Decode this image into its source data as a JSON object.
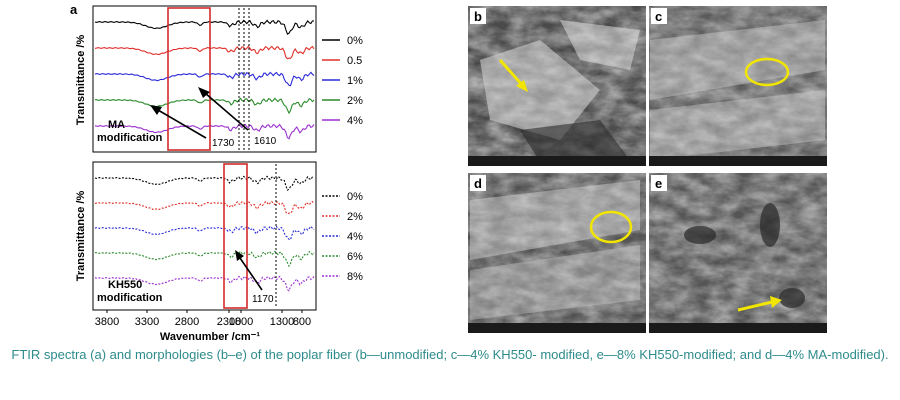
{
  "panel_a_label": "a",
  "x_axis": {
    "label": "Wavenumber /cm⁻¹",
    "ticks": [
      "3800",
      "3300",
      "2800",
      "2300",
      "1800",
      "1300",
      "800"
    ]
  },
  "top_plot": {
    "ylabel": "Transmittance /%",
    "modification": [
      "MA",
      "modification"
    ],
    "annotations": [
      "1730",
      "1610"
    ],
    "legend": [
      {
        "label": "0%",
        "color": "#000000"
      },
      {
        "label": "0.5",
        "color": "#e0302a"
      },
      {
        "label": "1%",
        "color": "#2a2ad8"
      },
      {
        "label": "2%",
        "color": "#2a8a2a"
      },
      {
        "label": "4%",
        "color": "#9a30d0"
      }
    ]
  },
  "bottom_plot": {
    "ylabel": "Transmittance /%",
    "modification": [
      "KH550",
      "modification"
    ],
    "annotations": [
      "1170"
    ],
    "legend": [
      {
        "label": "0%",
        "color": "#000000"
      },
      {
        "label": "2%",
        "color": "#e0302a"
      },
      {
        "label": "4%",
        "color": "#2a2ad8"
      },
      {
        "label": "6%",
        "color": "#2a8a2a"
      },
      {
        "label": "8%",
        "color": "#9a30d0"
      }
    ]
  },
  "sem_panels": [
    {
      "letter": "b",
      "marker": "arrow"
    },
    {
      "letter": "c",
      "marker": "ellipse"
    },
    {
      "letter": "d",
      "marker": "ellipse"
    },
    {
      "letter": "e",
      "marker": "arrow"
    }
  ],
  "caption": "FTIR spectra (a) and morphologies (b–e) of the poplar fiber (b—unmodified; c—4% KH550- modified, e—8% KH550-modified; and d—4% MA-modified).",
  "colors": {
    "highlight_box": "#d42a2a",
    "sem_marker": "#f2e600",
    "caption": "#2e8b8b"
  }
}
